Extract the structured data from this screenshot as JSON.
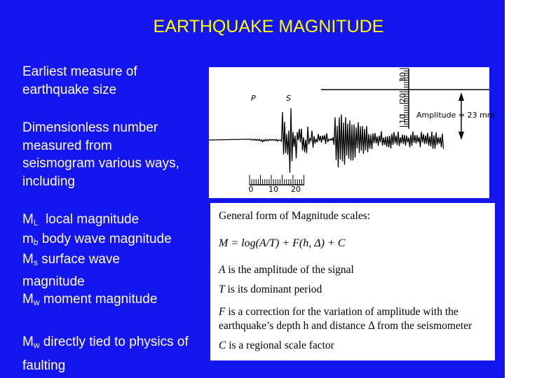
{
  "title": "EARTHQUAKE MAGNITUDE",
  "intro": [
    "Earliest measure of earthquake size",
    "Dimensionless number measured from seismogram various ways, including"
  ],
  "scales": [
    {
      "symbol": "M",
      "subscript": "L",
      "text": "local magnitude"
    },
    {
      "symbol": "m",
      "subscript": "b",
      "text": "body wave magnitude"
    },
    {
      "symbol": "M",
      "subscript": "s",
      "text": "surface wave magnitude"
    },
    {
      "symbol": "M",
      "subscript": "w",
      "text": "moment magnitude"
    }
  ],
  "closing": {
    "symbol": "M",
    "subscript": "w",
    "text": "directly tied to physics of faulting"
  },
  "seismogram": {
    "p_label": "P",
    "s_label": "S",
    "amplitude_label": "Amplitude = 23 mm",
    "scale_labels": [
      "30",
      "20",
      "10"
    ],
    "time_labels": [
      "0",
      "10",
      "20"
    ]
  },
  "formula_box": {
    "heading": "General form of Magnitude scales:",
    "formula": "M = log(A/T) + F(h, Δ) + C",
    "definitions": [
      {
        "symbol": "A",
        "text": "is the amplitude of the signal"
      },
      {
        "symbol": "T",
        "text": "is its dominant period"
      },
      {
        "symbol": "F",
        "text": "is a correction for the variation of amplitude with the earthquake’s depth h and distance Δ from the seismometer"
      },
      {
        "symbol": "C",
        "text": "is a regional scale factor"
      }
    ]
  }
}
